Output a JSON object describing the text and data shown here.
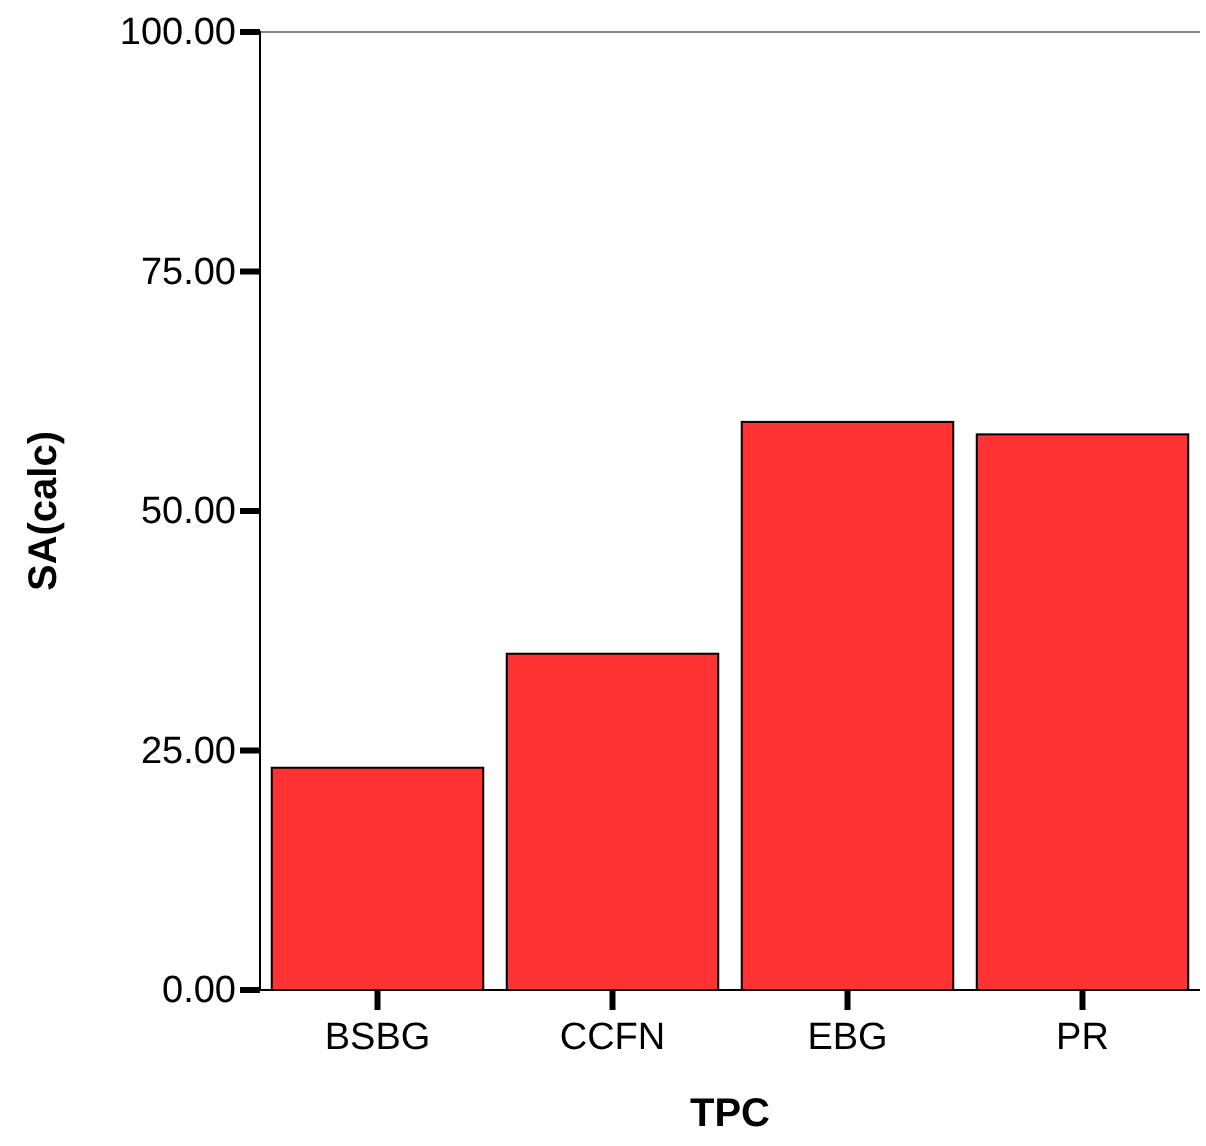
{
  "chart_data": {
    "type": "bar",
    "xlabel": "TPC",
    "ylabel": "SA(calc)",
    "categories": [
      "BSBG",
      "CCFN",
      "EBG",
      "PR"
    ],
    "values": [
      23.2,
      35.1,
      59.3,
      58.0
    ],
    "color": "#ff3333",
    "ylim": [
      0,
      100
    ],
    "yticks": [
      {
        "value": 0,
        "label": "0.00"
      },
      {
        "value": 25,
        "label": "25.00"
      },
      {
        "value": 50,
        "label": "50.00"
      },
      {
        "value": 75,
        "label": "75.00"
      },
      {
        "value": 100,
        "label": "100.00"
      }
    ],
    "grid": false
  }
}
